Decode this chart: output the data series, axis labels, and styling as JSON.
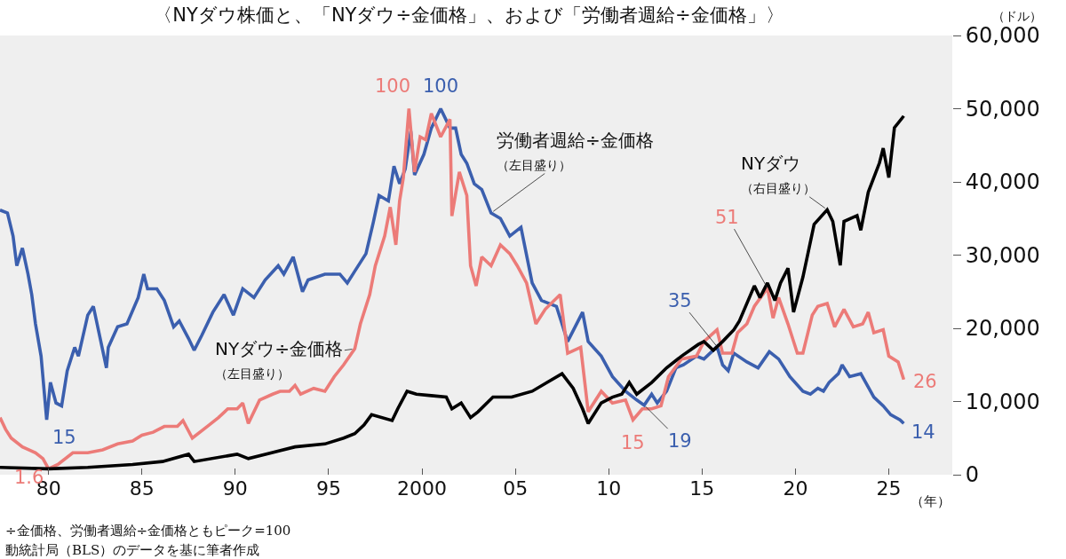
{
  "chart_data": {
    "type": "line",
    "title": "〈NYダウ株価と、「NYダウ÷金価格」、および「労働者週給÷金価格」〉",
    "xlabel": "（年）",
    "y2label": "（ドル）",
    "xlim": [
      1977.4,
      2028.4
    ],
    "xticks": [
      {
        "value": 1980,
        "label": "80"
      },
      {
        "value": 1985,
        "label": "85"
      },
      {
        "value": 1990,
        "label": "90"
      },
      {
        "value": 1995,
        "label": "95"
      },
      {
        "value": 2000,
        "label": "2000"
      },
      {
        "value": 2005,
        "label": "05"
      },
      {
        "value": 2010,
        "label": "10"
      },
      {
        "value": 2015,
        "label": "15"
      },
      {
        "value": 2020,
        "label": "20"
      },
      {
        "value": 2025,
        "label": "25"
      }
    ],
    "ylim": [
      0,
      120
    ],
    "y2lim": [
      0,
      60000
    ],
    "y2ticks": [
      0,
      {
        "value": 10000,
        "label": "10,000"
      },
      {
        "value": 20000,
        "label": "20,000"
      },
      {
        "value": 30000,
        "label": "30,000"
      },
      {
        "value": 40000,
        "label": "40,000"
      },
      {
        "value": 50000,
        "label": "50,000"
      },
      {
        "value": 60000,
        "label": "60,000"
      }
    ],
    "grid": false,
    "legend": false,
    "series": [
      {
        "name": "NYダウ÷金価格（左目盛り）",
        "color": "#ec7b78",
        "x": [
          1977.4,
          1977.7,
          1978.0,
          1978.6,
          1979.3,
          1979.7,
          1980.0,
          1980.5,
          1981.3,
          1982.1,
          1982.9,
          1983.7,
          1984.5,
          1985.0,
          1985.6,
          1986.2,
          1986.9,
          1987.2,
          1987.7,
          1988.5,
          1989.1,
          1989.6,
          1990.1,
          1990.4,
          1990.7,
          1991.3,
          1992.0,
          1992.4,
          1992.9,
          1993.2,
          1993.5,
          1994.2,
          1994.8,
          1995.3,
          1995.8,
          1996.4,
          1996.7,
          1997.2,
          1997.5,
          1998.0,
          1998.3,
          1998.6,
          1998.8,
          1999.0,
          1999.3,
          1999.6,
          1999.9,
          2000.2,
          2000.5,
          2001.0,
          2001.5,
          2001.6,
          2002.0,
          2002.4,
          2002.6,
          2002.9,
          2003.2,
          2003.7,
          2004.2,
          2004.7,
          2005.1,
          2005.6,
          2006.1,
          2006.6,
          2007.4,
          2007.8,
          2008.5,
          2008.9,
          2009.6,
          2010.2,
          2010.9,
          2011.3,
          2011.8,
          2012.3,
          2012.8,
          2013.2,
          2013.9,
          2014.7,
          2015.1,
          2015.8,
          2016.1,
          2016.6,
          2016.9,
          2017.4,
          2017.8,
          2018.5,
          2018.8,
          2019.1,
          2019.6,
          2020.1,
          2020.4,
          2020.9,
          2021.2,
          2021.7,
          2022.1,
          2022.6,
          2023.1,
          2023.6,
          2023.9,
          2024.2,
          2024.7,
          2025.0,
          2025.5,
          2025.8
        ],
        "values": [
          15.6,
          12.4,
          10.0,
          7.6,
          6.0,
          4.4,
          1.6,
          2.8,
          6.0,
          6.0,
          6.8,
          8.4,
          9.2,
          10.8,
          11.6,
          13.2,
          13.2,
          14.8,
          10.0,
          13.2,
          15.6,
          18.0,
          18.0,
          19.6,
          14.0,
          20.4,
          22.0,
          22.8,
          22.8,
          24.4,
          22.0,
          23.6,
          22.8,
          26.8,
          30.0,
          34.4,
          41.2,
          49.2,
          57.1,
          65.2,
          73.1,
          62.8,
          74.8,
          81.1,
          100,
          82.7,
          92.3,
          91.5,
          98.7,
          92.3,
          97.1,
          70.7,
          82.7,
          76.3,
          57.1,
          51.6,
          59.5,
          57.1,
          62.8,
          60.4,
          57.1,
          52.4,
          41.2,
          45.2,
          49.2,
          33.2,
          34.8,
          17.2,
          22.8,
          19.6,
          20.4,
          15,
          18.0,
          18.0,
          18.8,
          26.8,
          31.6,
          32.4,
          36.4,
          39.6,
          33.2,
          33.2,
          38.8,
          41.2,
          46.0,
          51,
          42.8,
          48.4,
          41.2,
          33.2,
          33.2,
          43.6,
          46.0,
          46.8,
          40.4,
          45.2,
          40.4,
          41.2,
          44.4,
          38.8,
          39.6,
          32.4,
          30.8,
          26
        ],
        "value_labels": [
          null,
          null,
          null,
          null,
          null,
          null,
          "1.6",
          null,
          null,
          null,
          null,
          null,
          null,
          null,
          null,
          null,
          null,
          null,
          null,
          null,
          null,
          null,
          null,
          null,
          null,
          null,
          null,
          null,
          null,
          null,
          null,
          null,
          null,
          null,
          null,
          null,
          null,
          null,
          null,
          null,
          null,
          null,
          null,
          null,
          "100",
          null,
          null,
          null,
          null,
          null,
          null,
          null,
          null,
          null,
          null,
          null,
          null,
          null,
          null,
          null,
          null,
          null,
          null,
          null,
          null,
          null,
          null,
          null,
          null,
          null,
          null,
          "15",
          null,
          null,
          null,
          null,
          null,
          null,
          null,
          null,
          null,
          null,
          null,
          null,
          null,
          "51",
          null,
          null,
          null,
          null,
          null,
          null,
          null,
          null,
          null,
          null,
          null,
          null,
          null,
          null,
          null,
          null,
          null,
          "26"
        ]
      },
      {
        "name": "労働者週給÷金価格（左目盛り）",
        "color": "#3b5fae",
        "x": [
          1977.4,
          1977.8,
          1978.1,
          1978.3,
          1978.6,
          1978.9,
          1979.1,
          1979.3,
          1979.6,
          1979.9,
          1980.1,
          1980.4,
          1980.7,
          1981.0,
          1981.4,
          1981.6,
          1982.1,
          1982.4,
          1982.8,
          1983.1,
          1983.2,
          1983.7,
          1984.2,
          1984.8,
          1985.1,
          1985.3,
          1985.8,
          1986.2,
          1986.7,
          1987.0,
          1987.5,
          1987.8,
          1988.2,
          1988.8,
          1989.4,
          1989.9,
          1990.4,
          1991.0,
          1991.6,
          1992.3,
          1992.6,
          1993.1,
          1993.6,
          1993.9,
          1994.8,
          1995.6,
          1996.0,
          1996.4,
          1997.0,
          1997.4,
          1997.7,
          1998.2,
          1998.5,
          1998.8,
          1999.1,
          1999.4,
          1999.6,
          2000.1,
          2000.5,
          2001.0,
          2001.5,
          2001.8,
          2002.1,
          2002.4,
          2002.8,
          2003.2,
          2003.7,
          2004.2,
          2004.7,
          2005.3,
          2005.9,
          2006.4,
          2007.2,
          2007.8,
          2008.6,
          2008.9,
          2009.6,
          2010.2,
          2010.9,
          2011.5,
          2011.9,
          2012.3,
          2012.6,
          2013.1,
          2013.6,
          2014.0,
          2014.7,
          2015.1,
          2015.8,
          2016.1,
          2016.4,
          2016.7,
          2017.4,
          2018.0,
          2018.6,
          2019.1,
          2019.7,
          2020.4,
          2020.8,
          2021.2,
          2021.5,
          2021.8,
          2022.3,
          2022.5,
          2022.9,
          2023.5,
          2024.2,
          2024.7,
          2025.1,
          2025.6,
          2025.8
        ],
        "values": [
          72.3,
          71.5,
          65.2,
          57.1,
          61.9,
          54.8,
          49.2,
          41.2,
          32.4,
          15,
          25.2,
          19.6,
          18.8,
          28.4,
          34.8,
          32.4,
          43.6,
          46.0,
          36.4,
          29.2,
          34.8,
          40.4,
          41.2,
          48.4,
          54.8,
          50.8,
          50.8,
          47.6,
          40.4,
          42.0,
          37.2,
          34.0,
          38.0,
          44.4,
          49.2,
          43.6,
          50.8,
          48.4,
          53.2,
          57.1,
          54.8,
          59.5,
          50.0,
          53.2,
          54.8,
          54.8,
          52.4,
          55.6,
          60.4,
          69.1,
          76.3,
          74.8,
          84.3,
          79.5,
          83.5,
          93.9,
          81.9,
          87.5,
          94.7,
          100,
          94.7,
          94.7,
          87.5,
          85.1,
          79.5,
          77.9,
          71.5,
          70.0,
          65.2,
          67.6,
          52.4,
          47.6,
          46.0,
          36.4,
          44.4,
          36.4,
          32.4,
          26.8,
          22.8,
          20.4,
          19,
          22.0,
          19.6,
          22.8,
          29.2,
          30.0,
          32.4,
          31.6,
          35,
          30.0,
          28.4,
          33.2,
          30.8,
          29.2,
          33.6,
          31.6,
          26.8,
          22.8,
          22.0,
          23.6,
          22.8,
          25.2,
          27.6,
          30.0,
          26.8,
          27.6,
          21.2,
          18.8,
          16.4,
          15.0,
          14
        ],
        "value_labels": [
          null,
          null,
          null,
          null,
          null,
          null,
          null,
          null,
          null,
          "15",
          null,
          null,
          null,
          null,
          null,
          null,
          null,
          null,
          null,
          null,
          null,
          null,
          null,
          null,
          null,
          null,
          null,
          null,
          null,
          null,
          null,
          null,
          null,
          null,
          null,
          null,
          null,
          null,
          null,
          null,
          null,
          null,
          null,
          null,
          null,
          null,
          null,
          null,
          null,
          null,
          null,
          null,
          null,
          null,
          null,
          null,
          null,
          null,
          null,
          "100",
          null,
          null,
          null,
          null,
          null,
          null,
          null,
          null,
          null,
          null,
          null,
          null,
          null,
          null,
          null,
          null,
          null,
          null,
          null,
          null,
          "19",
          null,
          null,
          null,
          null,
          null,
          null,
          null,
          "35",
          null,
          null,
          null,
          null,
          null,
          null,
          null,
          null,
          null,
          null,
          null,
          null,
          null,
          null,
          null,
          null,
          null,
          null,
          null,
          null,
          null,
          "14"
        ]
      },
      {
        "name": "NYダウ（右目盛り）",
        "color": "#000000",
        "axis": "y2",
        "x": [
          1977.4,
          1980.0,
          1982.1,
          1984.5,
          1986.1,
          1987.5,
          1987.8,
          1990.1,
          1990.7,
          1993.2,
          1994.8,
          1995.8,
          1996.4,
          1996.9,
          1997.3,
          1998.4,
          1998.7,
          1999.2,
          1999.7,
          2000.5,
          2001.3,
          2001.6,
          2002.1,
          2002.6,
          2003.0,
          2003.8,
          2004.8,
          2005.9,
          2006.7,
          2007.5,
          2008.1,
          2008.6,
          2008.9,
          2009.6,
          2010.2,
          2010.7,
          2011.1,
          2011.5,
          2012.3,
          2013.1,
          2013.9,
          2014.8,
          2015.1,
          2015.6,
          2016.1,
          2016.7,
          2017.0,
          2017.8,
          2018.1,
          2018.5,
          2018.9,
          2019.2,
          2019.6,
          2019.9,
          2020.4,
          2020.7,
          2021.0,
          2021.7,
          2022.0,
          2022.4,
          2022.6,
          2023.3,
          2023.5,
          2023.9,
          2024.5,
          2024.7,
          2025.0,
          2025.3,
          2025.8
        ],
        "values": [
          1000,
          800,
          1000,
          1400,
          1800,
          2800,
          1800,
          2800,
          2200,
          3800,
          4200,
          5000,
          5600,
          6800,
          8200,
          7400,
          9000,
          11400,
          11000,
          10800,
          10600,
          9000,
          9800,
          7800,
          8600,
          10600,
          10600,
          11400,
          12600,
          13800,
          11800,
          9000,
          7000,
          9800,
          10600,
          11000,
          12600,
          11000,
          12600,
          14600,
          16200,
          17800,
          18200,
          17000,
          18200,
          19800,
          21000,
          25800,
          24200,
          26200,
          23800,
          26200,
          28200,
          22200,
          27000,
          30600,
          34200,
          36200,
          34600,
          28600,
          34600,
          35400,
          33400,
          38600,
          42600,
          44600,
          40600,
          47400,
          49000
        ]
      }
    ],
    "annotations": [
      "÷金価格、労働者週給÷金価格ともピーク=100",
      "動統計局（BLS）のデータを基に筆者作成"
    ]
  }
}
